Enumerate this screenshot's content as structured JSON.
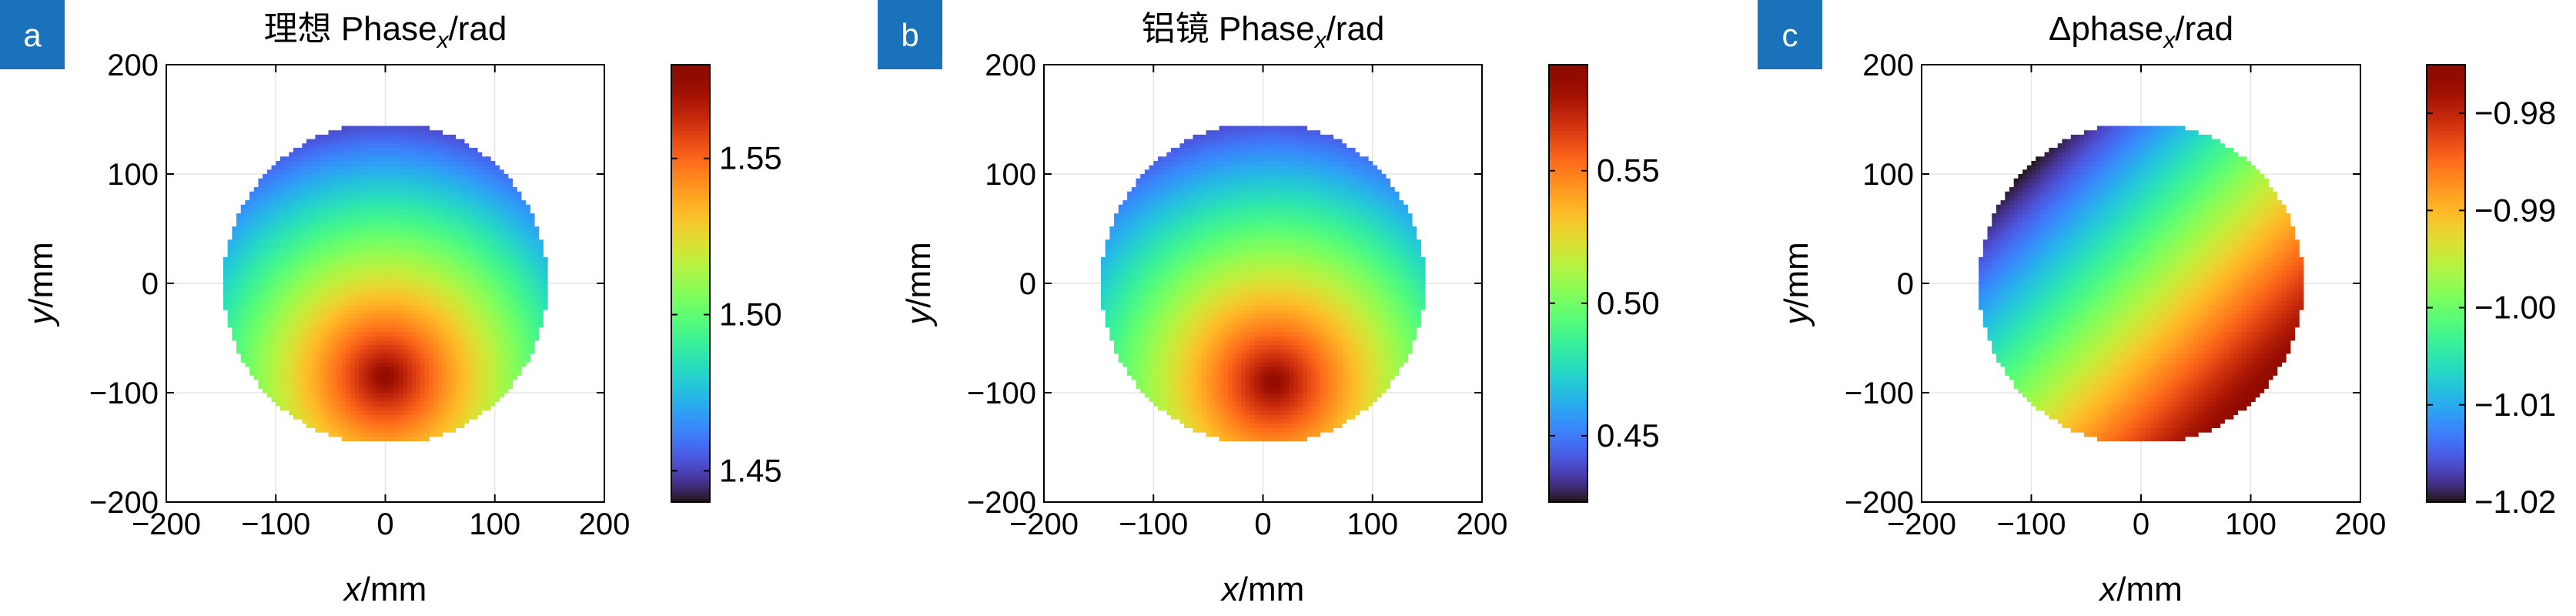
{
  "chart_data": [
    {
      "type": "heatmap",
      "panel_label": "a",
      "title_main": "理想 Phase",
      "title_sub": "x",
      "title_tail": "/rad",
      "xlabel_var": "x",
      "xlabel_unit": "/mm",
      "ylabel_var": "y",
      "ylabel_unit": "/mm",
      "xlim": [
        -200,
        200
      ],
      "ylim": [
        -200,
        200
      ],
      "xticks": [
        -200,
        -100,
        0,
        100,
        200
      ],
      "yticks": [
        -200,
        -100,
        0,
        100,
        200
      ],
      "xtick_labels": [
        "−200",
        "−100",
        "0",
        "100",
        "200"
      ],
      "ytick_labels": [
        "−200",
        "−100",
        "0",
        "100",
        "200"
      ],
      "aperture_radius_mm": 148,
      "peak_center_mm": [
        0,
        -85
      ],
      "value_range": [
        1.44,
        1.58
      ],
      "colorbar_ticks": [
        1.45,
        1.5,
        1.55
      ],
      "colorbar_tick_labels": [
        "1.45",
        "1.50",
        "1.55"
      ],
      "colorbar_range": [
        1.44,
        1.58
      ],
      "colormap": "turbo",
      "grid": true
    },
    {
      "type": "heatmap",
      "panel_label": "b",
      "title_main": "铝镜 Phase",
      "title_sub": "x",
      "title_tail": "/rad",
      "xlabel_var": "x",
      "xlabel_unit": "/mm",
      "ylabel_var": "y",
      "ylabel_unit": "/mm",
      "xlim": [
        -200,
        200
      ],
      "ylim": [
        -200,
        200
      ],
      "xticks": [
        -200,
        -100,
        0,
        100,
        200
      ],
      "yticks": [
        -200,
        -100,
        0,
        100,
        200
      ],
      "xtick_labels": [
        "−200",
        "−100",
        "0",
        "100",
        "200"
      ],
      "ytick_labels": [
        "−200",
        "−100",
        "0",
        "100",
        "200"
      ],
      "aperture_radius_mm": 148,
      "peak_center_mm": [
        10,
        -90
      ],
      "value_range": [
        0.43,
        0.59
      ],
      "colorbar_ticks": [
        0.45,
        0.5,
        0.55
      ],
      "colorbar_tick_labels": [
        "0.45",
        "0.50",
        "0.55"
      ],
      "colorbar_range": [
        0.425,
        0.59
      ],
      "colormap": "turbo",
      "grid": true
    },
    {
      "type": "heatmap",
      "panel_label": "c",
      "title_main": "Δphase",
      "title_sub": "x",
      "title_tail": "/rad",
      "xlabel_var": "x",
      "xlabel_unit": "/mm",
      "ylabel_var": "y",
      "ylabel_unit": "/mm",
      "xlim": [
        -200,
        200
      ],
      "ylim": [
        -200,
        200
      ],
      "xticks": [
        -200,
        -100,
        0,
        100,
        200
      ],
      "yticks": [
        -200,
        -100,
        0,
        100,
        200
      ],
      "xtick_labels": [
        "−200",
        "−100",
        "0",
        "100",
        "200"
      ],
      "ytick_labels": [
        "−200",
        "−100",
        "0",
        "100",
        "200"
      ],
      "aperture_radius_mm": 148,
      "gradient": "linear, increasing toward lower-right",
      "value_range": [
        -1.02,
        -0.975
      ],
      "colorbar_ticks": [
        -1.02,
        -1.01,
        -1.0,
        -0.99,
        -0.98
      ],
      "colorbar_tick_labels": [
        "−1.02",
        "−1.01",
        "−1.00",
        "−0.99",
        "−0.98"
      ],
      "colorbar_range": [
        -1.02,
        -0.975
      ],
      "colormap": "turbo",
      "grid": true
    }
  ],
  "colors": {
    "badge": "#1a72bb",
    "axis": "#000000",
    "grid": "#e6e6e6"
  }
}
